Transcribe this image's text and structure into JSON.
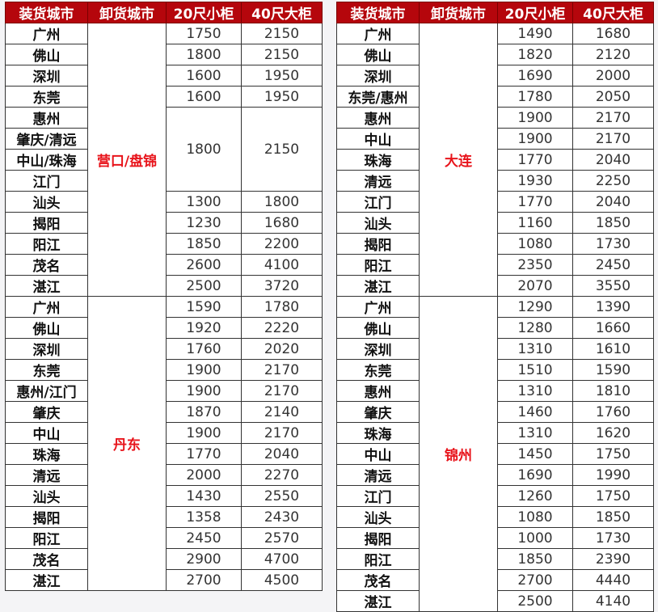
{
  "headers": [
    "装货城市",
    "卸货城市",
    "20尺小柜",
    "40尺大柜"
  ],
  "colors": {
    "header_bg": "#b5060c",
    "header_text": "#ffffff",
    "unload_city_text": "#e8141b"
  },
  "tables": [
    {
      "groups": [
        {
          "unload_city": "营口/盘锦",
          "rows": [
            {
              "load_cities": [
                "广州"
              ],
              "p20": "1750",
              "p40": "2150"
            },
            {
              "load_cities": [
                "佛山"
              ],
              "p20": "1800",
              "p40": "2150"
            },
            {
              "load_cities": [
                "深圳"
              ],
              "p20": "1600",
              "p40": "1950"
            },
            {
              "load_cities": [
                "东莞"
              ],
              "p20": "1600",
              "p40": "1950"
            },
            {
              "load_cities": [
                "惠州",
                "肇庆/清远",
                "中山/珠海",
                "江门"
              ],
              "p20": "1800",
              "p40": "2150"
            },
            {
              "load_cities": [
                "汕头"
              ],
              "p20": "1300",
              "p40": "1800"
            },
            {
              "load_cities": [
                "揭阳"
              ],
              "p20": "1230",
              "p40": "1680"
            },
            {
              "load_cities": [
                "阳江"
              ],
              "p20": "1850",
              "p40": "2200"
            },
            {
              "load_cities": [
                "茂名"
              ],
              "p20": "2600",
              "p40": "4100"
            },
            {
              "load_cities": [
                "湛江"
              ],
              "p20": "2500",
              "p40": "3720"
            }
          ]
        },
        {
          "unload_city": "丹东",
          "rows": [
            {
              "load_cities": [
                "广州"
              ],
              "p20": "1590",
              "p40": "1780"
            },
            {
              "load_cities": [
                "佛山"
              ],
              "p20": "1920",
              "p40": "2220"
            },
            {
              "load_cities": [
                "深圳"
              ],
              "p20": "1760",
              "p40": "2020"
            },
            {
              "load_cities": [
                "东莞"
              ],
              "p20": "1900",
              "p40": "2170"
            },
            {
              "load_cities": [
                "惠州/江门"
              ],
              "p20": "1900",
              "p40": "2170"
            },
            {
              "load_cities": [
                "肇庆"
              ],
              "p20": "1870",
              "p40": "2140"
            },
            {
              "load_cities": [
                "中山"
              ],
              "p20": "1900",
              "p40": "2170"
            },
            {
              "load_cities": [
                "珠海"
              ],
              "p20": "1770",
              "p40": "2040"
            },
            {
              "load_cities": [
                "清远"
              ],
              "p20": "2000",
              "p40": "2270"
            },
            {
              "load_cities": [
                "汕头"
              ],
              "p20": "1430",
              "p40": "2550"
            },
            {
              "load_cities": [
                "揭阳"
              ],
              "p20": "1358",
              "p40": "2430"
            },
            {
              "load_cities": [
                "阳江"
              ],
              "p20": "2450",
              "p40": "2570"
            },
            {
              "load_cities": [
                "茂名"
              ],
              "p20": "2900",
              "p40": "4700"
            },
            {
              "load_cities": [
                "湛江"
              ],
              "p20": "2700",
              "p40": "4500"
            }
          ]
        }
      ]
    },
    {
      "groups": [
        {
          "unload_city": "大连",
          "rows": [
            {
              "load_cities": [
                "广州"
              ],
              "p20": "1490",
              "p40": "1680"
            },
            {
              "load_cities": [
                "佛山"
              ],
              "p20": "1820",
              "p40": "2120"
            },
            {
              "load_cities": [
                "深圳"
              ],
              "p20": "1690",
              "p40": "2000"
            },
            {
              "load_cities": [
                "东莞/惠州"
              ],
              "p20": "1780",
              "p40": "2050"
            },
            {
              "load_cities": [
                "惠州"
              ],
              "p20": "1900",
              "p40": "2170"
            },
            {
              "load_cities": [
                "中山"
              ],
              "p20": "1900",
              "p40": "2170"
            },
            {
              "load_cities": [
                "珠海"
              ],
              "p20": "1770",
              "p40": "2040"
            },
            {
              "load_cities": [
                "清远"
              ],
              "p20": "1930",
              "p40": "2250"
            },
            {
              "load_cities": [
                "江门"
              ],
              "p20": "1770",
              "p40": "2040"
            },
            {
              "load_cities": [
                "汕头"
              ],
              "p20": "1160",
              "p40": "1850"
            },
            {
              "load_cities": [
                "揭阳"
              ],
              "p20": "1080",
              "p40": "1730"
            },
            {
              "load_cities": [
                "阳江"
              ],
              "p20": "2350",
              "p40": "2450"
            },
            {
              "load_cities": [
                "湛江"
              ],
              "p20": "2070",
              "p40": "3550"
            }
          ]
        },
        {
          "unload_city": "锦州",
          "rows": [
            {
              "load_cities": [
                "广州"
              ],
              "p20": "1290",
              "p40": "1390"
            },
            {
              "load_cities": [
                "佛山"
              ],
              "p20": "1280",
              "p40": "1660"
            },
            {
              "load_cities": [
                "深圳"
              ],
              "p20": "1310",
              "p40": "1610"
            },
            {
              "load_cities": [
                "东莞"
              ],
              "p20": "1510",
              "p40": "1590"
            },
            {
              "load_cities": [
                "惠州"
              ],
              "p20": "1310",
              "p40": "1810"
            },
            {
              "load_cities": [
                "肇庆"
              ],
              "p20": "1460",
              "p40": "1760"
            },
            {
              "load_cities": [
                "珠海"
              ],
              "p20": "1310",
              "p40": "1620"
            },
            {
              "load_cities": [
                "中山"
              ],
              "p20": "1450",
              "p40": "1750"
            },
            {
              "load_cities": [
                "清远"
              ],
              "p20": "1690",
              "p40": "1990"
            },
            {
              "load_cities": [
                "江门"
              ],
              "p20": "1260",
              "p40": "1750"
            },
            {
              "load_cities": [
                "汕头"
              ],
              "p20": "1080",
              "p40": "1850"
            },
            {
              "load_cities": [
                "揭阳"
              ],
              "p20": "1000",
              "p40": "1730"
            },
            {
              "load_cities": [
                "阳江"
              ],
              "p20": "1850",
              "p40": "2390"
            },
            {
              "load_cities": [
                "茂名"
              ],
              "p20": "2700",
              "p40": "4440"
            },
            {
              "load_cities": [
                "湛江"
              ],
              "p20": "2500",
              "p40": "4140"
            }
          ]
        }
      ]
    }
  ]
}
